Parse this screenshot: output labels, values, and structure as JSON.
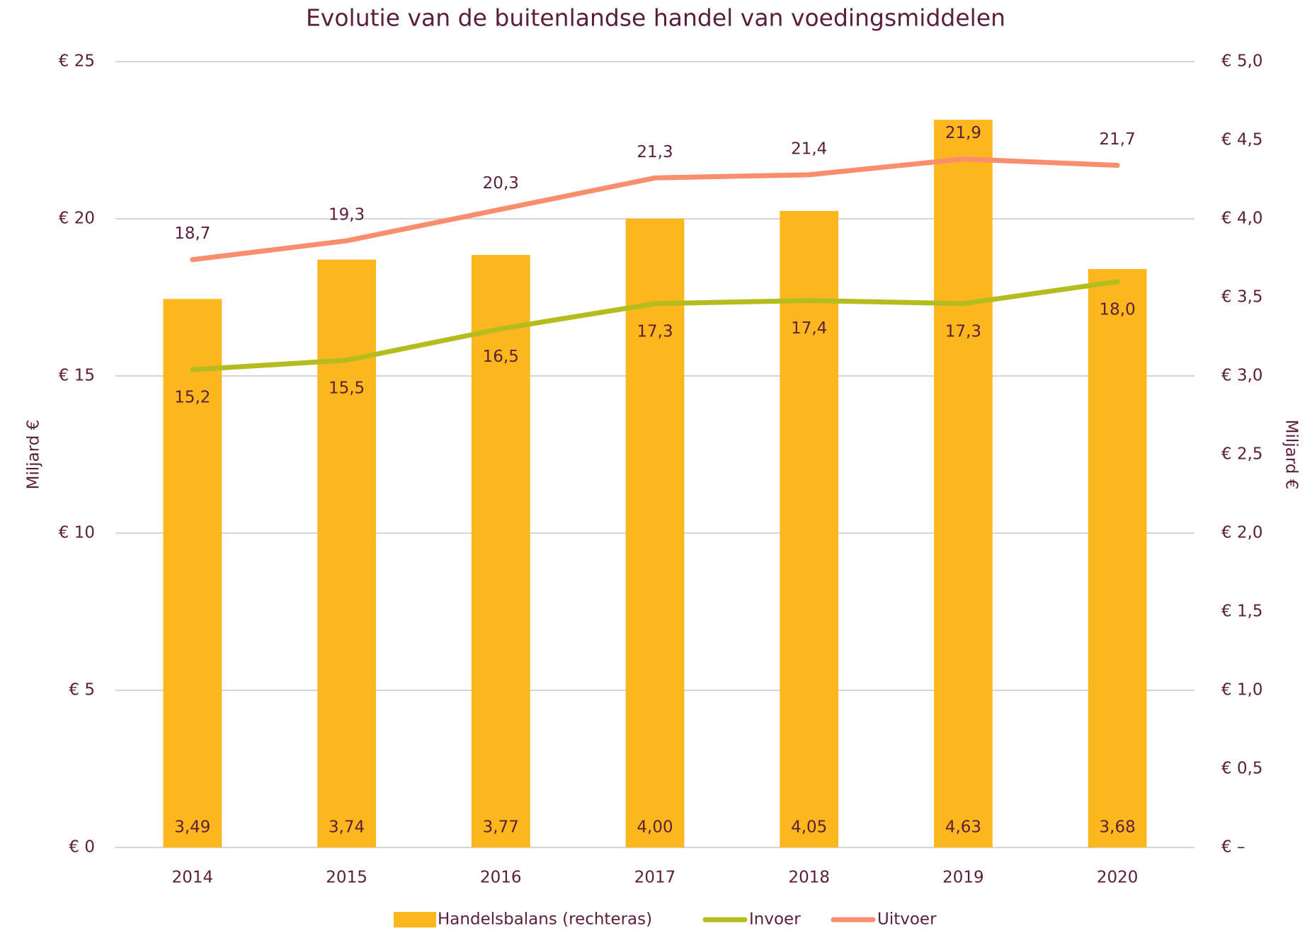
{
  "chart_data": {
    "type": "combo",
    "title": "Evolutie van de buitenlandse handel van voedingsmiddelen",
    "y_label": "Miljard €",
    "y2_label": "Miljard €",
    "categories": [
      "2014",
      "2015",
      "2016",
      "2017",
      "2018",
      "2019",
      "2020"
    ],
    "ylim": [
      0,
      25
    ],
    "yticks": [
      {
        "value": 0,
        "label": "€ 0"
      },
      {
        "value": 5,
        "label": "€ 5"
      },
      {
        "value": 10,
        "label": "€ 10"
      },
      {
        "value": 15,
        "label": "€ 15"
      },
      {
        "value": 20,
        "label": "€ 20"
      },
      {
        "value": 25,
        "label": "€ 25"
      }
    ],
    "y2lim": [
      0,
      5
    ],
    "y2ticks": [
      {
        "value": 0,
        "label": "€ –"
      },
      {
        "value": 0.5,
        "label": "€ 0,5"
      },
      {
        "value": 1,
        "label": "€ 1,0"
      },
      {
        "value": 1.5,
        "label": "€ 1,5"
      },
      {
        "value": 2,
        "label": "€ 2,0"
      },
      {
        "value": 2.5,
        "label": "€ 2,5"
      },
      {
        "value": 3,
        "label": "€ 3,0"
      },
      {
        "value": 3.5,
        "label": "€ 3,5"
      },
      {
        "value": 4,
        "label": "€ 4,0"
      },
      {
        "value": 4.5,
        "label": "€ 4,5"
      },
      {
        "value": 5,
        "label": "€ 5,0"
      }
    ],
    "grid": true,
    "legend": "bottom",
    "series": [
      {
        "name": "Handelsbalans (rechteras)",
        "type": "bar",
        "axis": "y2",
        "color": "#fdb71e",
        "values": [
          3.49,
          3.74,
          3.77,
          4.0,
          4.05,
          4.63,
          3.68
        ],
        "value_labels": [
          "3,49",
          "3,74",
          "3,77",
          "4,00",
          "4,05",
          "4,63",
          "3,68"
        ]
      },
      {
        "name": "Invoer",
        "type": "line",
        "color": "#b5bd1e",
        "values": [
          15.2,
          15.5,
          16.5,
          17.3,
          17.4,
          17.3,
          18.0
        ],
        "value_labels": [
          "15,2",
          "15,5",
          "16,5",
          "17,3",
          "17,4",
          "17,3",
          "18,0"
        ]
      },
      {
        "name": "Uitvoer",
        "type": "line",
        "color": "#f98e6e",
        "values": [
          18.7,
          19.3,
          20.3,
          21.3,
          21.4,
          21.9,
          21.7
        ],
        "value_labels": [
          "18,7",
          "19,3",
          "20,3",
          "21,3",
          "21,4",
          "21,9",
          "21,7"
        ]
      }
    ]
  }
}
